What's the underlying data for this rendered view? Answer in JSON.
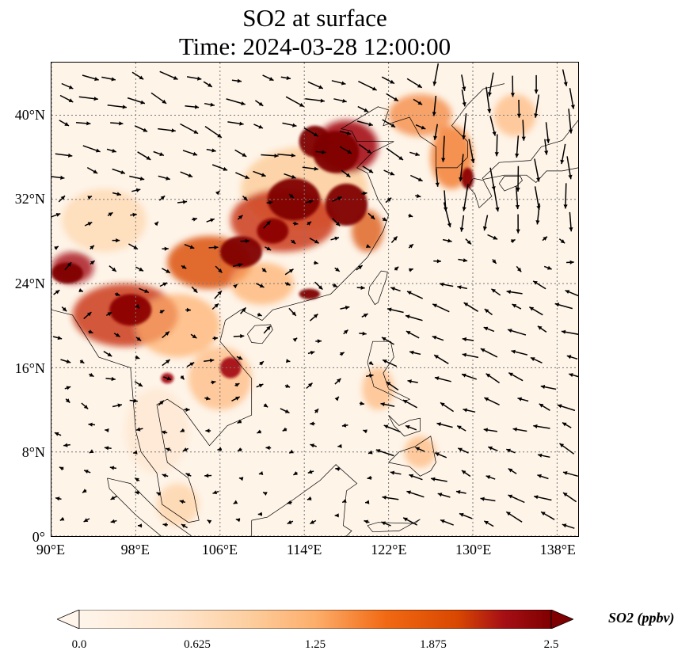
{
  "title": {
    "line1": "SO2 at surface",
    "line2": "Time: 2024-03-28 12:00:00"
  },
  "map": {
    "lon_range": [
      90,
      140
    ],
    "lat_range": [
      0,
      45
    ],
    "lat_ticks": [
      {
        "value": 0,
        "label": "0°"
      },
      {
        "value": 8,
        "label": "8°N"
      },
      {
        "value": 16,
        "label": "16°N"
      },
      {
        "value": 24,
        "label": "24°N"
      },
      {
        "value": 32,
        "label": "32°N"
      },
      {
        "value": 40,
        "label": "40°N"
      }
    ],
    "lon_ticks": [
      {
        "value": 90,
        "label": "90°E"
      },
      {
        "value": 98,
        "label": "98°E"
      },
      {
        "value": 106,
        "label": "106°E"
      },
      {
        "value": 114,
        "label": "114°E"
      },
      {
        "value": 122,
        "label": "122°E"
      },
      {
        "value": 130,
        "label": "130°E"
      },
      {
        "value": 138,
        "label": "138°E"
      }
    ],
    "gridlines": true,
    "background_color": "#fef4e8",
    "coastline_color": "#000000",
    "arrow_color": "#000000"
  },
  "colorbar": {
    "label": "SO2 (ppbv)",
    "min": 0.0,
    "max": 2.5,
    "ticks": [
      "0.0",
      "0.625",
      "1.25",
      "1.875",
      "2.5"
    ],
    "colormap": [
      "#fff5eb",
      "#fdd0a2",
      "#fdae6b",
      "#f16913",
      "#d94801",
      "#a50f15",
      "#7f0000"
    ],
    "extend": "both"
  }
}
